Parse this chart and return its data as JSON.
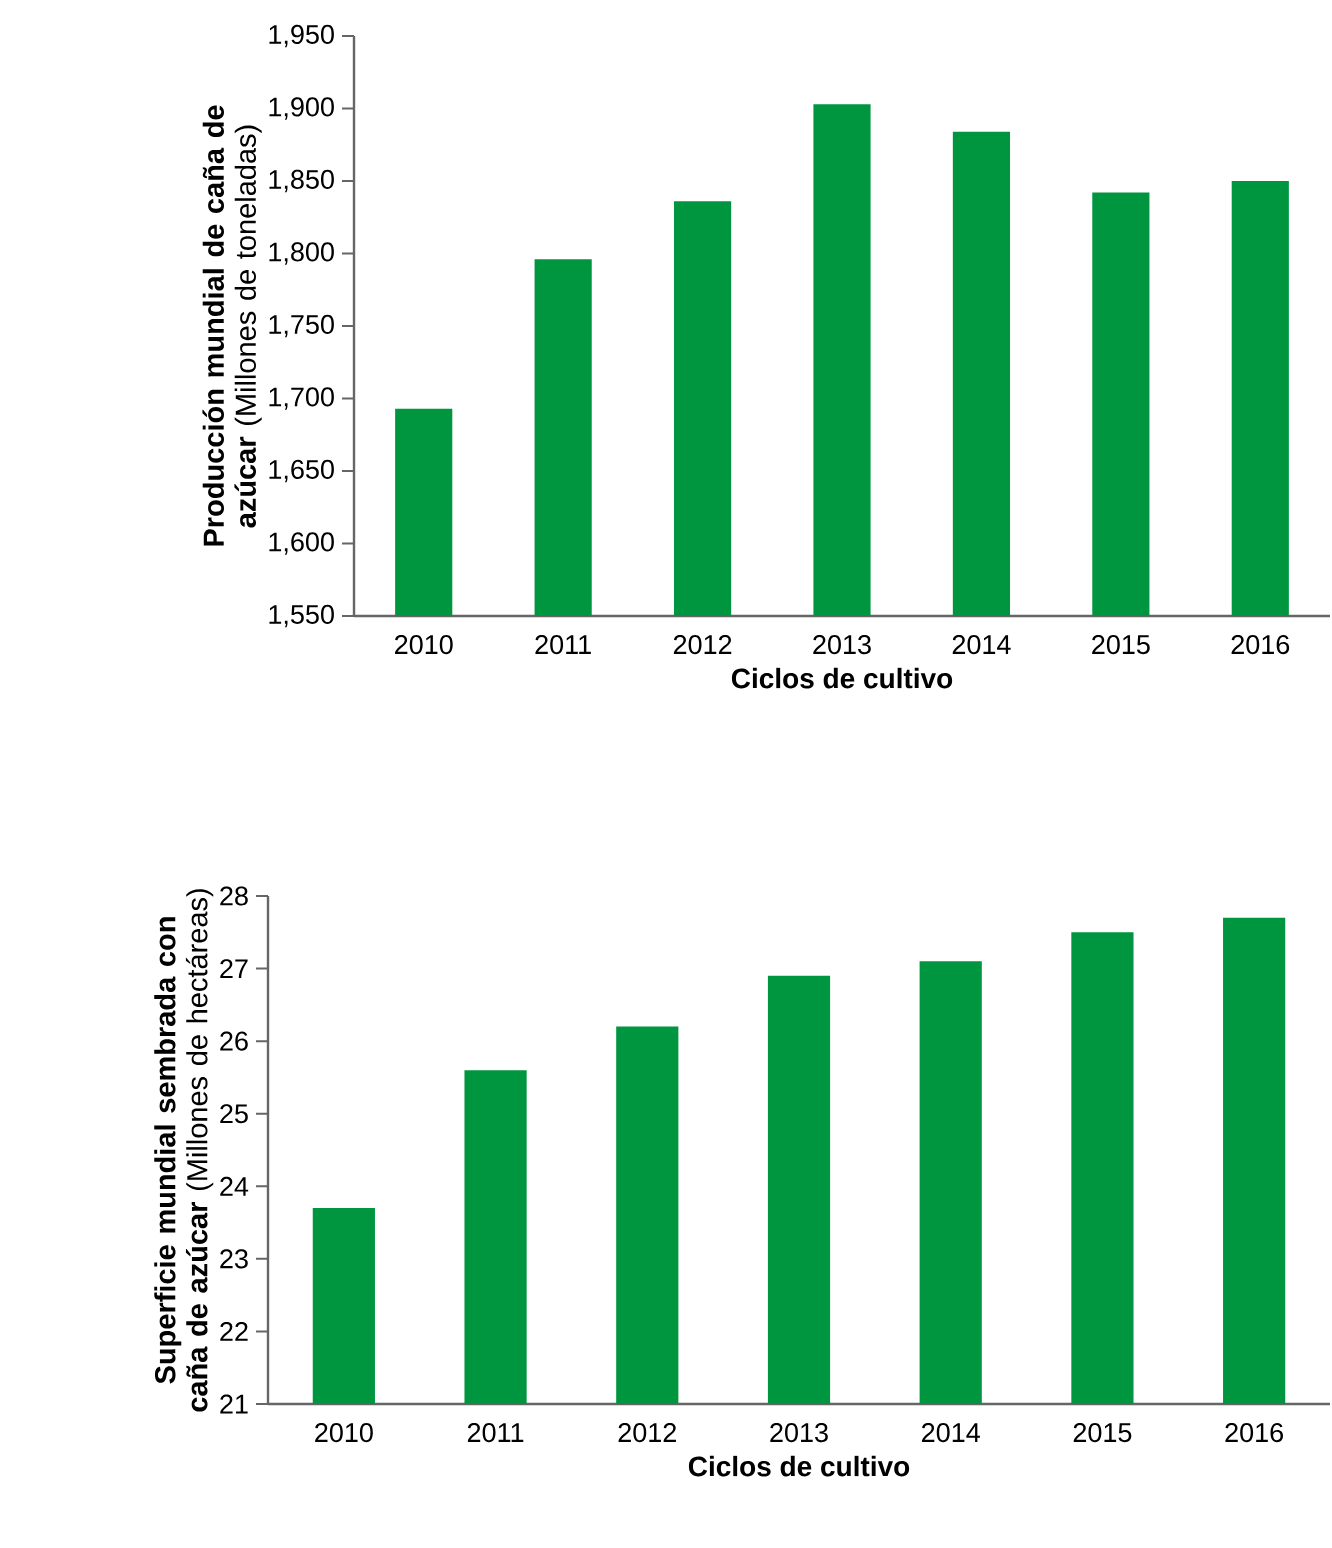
{
  "chart_data": [
    {
      "type": "bar",
      "xlabel": "Ciclos de cultivo",
      "ylabel": "**Producción mundial de caña de azúcar** (Millones de toneladas)",
      "categories": [
        "2010",
        "2011",
        "2012",
        "2013",
        "2014",
        "2015",
        "2016"
      ],
      "values": [
        1693,
        1796,
        1836,
        1903,
        1884,
        1842,
        1850
      ],
      "color": "#00963f",
      "ylim": [
        1550,
        1950
      ],
      "yticks": [
        {
          "value": 1550,
          "label": "1,550"
        },
        {
          "value": 1600,
          "label": "1,600"
        },
        {
          "value": 1650,
          "label": "1,650"
        },
        {
          "value": 1700,
          "label": "1,700"
        },
        {
          "value": 1750,
          "label": "1,750"
        },
        {
          "value": 1800,
          "label": "1,800"
        },
        {
          "value": 1850,
          "label": "1,850"
        },
        {
          "value": 1900,
          "label": "1,900"
        },
        {
          "value": 1950,
          "label": "1,950"
        }
      ],
      "grid": false
    },
    {
      "type": "bar",
      "xlabel": "Ciclos de cultivo",
      "ylabel": "**Superficie mundial sembrada con caña de azúcar** (Millones de hectáreas)",
      "categories": [
        "2010",
        "2011",
        "2012",
        "2013",
        "2014",
        "2015",
        "2016"
      ],
      "values": [
        23.7,
        25.6,
        26.2,
        26.9,
        27.1,
        27.5,
        27.7
      ],
      "color": "#00963f",
      "ylim": [
        21,
        28
      ],
      "yticks": [
        21,
        22,
        23,
        24,
        25,
        26,
        27,
        28
      ],
      "grid": false
    }
  ]
}
